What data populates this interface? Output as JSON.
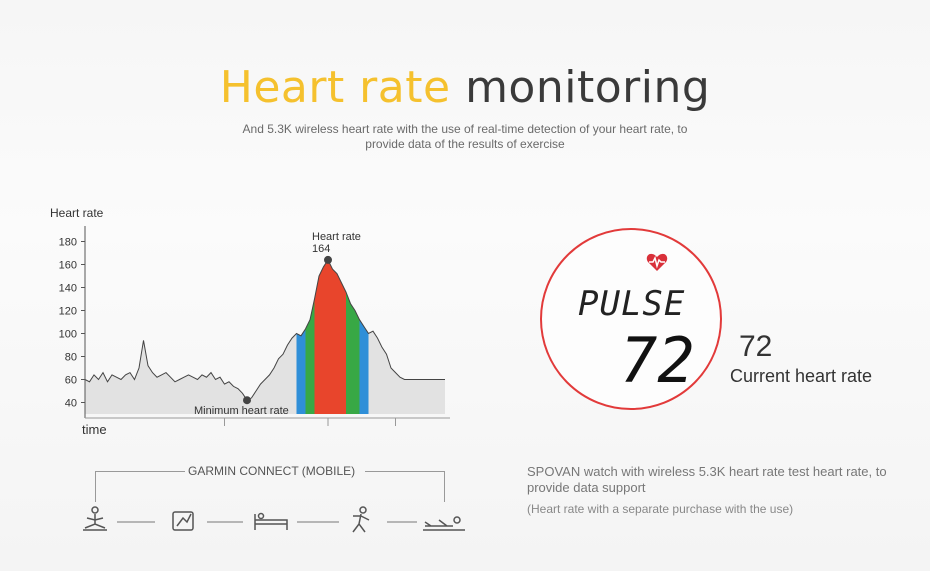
{
  "header": {
    "title_accent": "Heart rate",
    "title_rest": "monitoring",
    "subtitle": "And 5.3K wireless heart rate with the use of real-time detection of your heart rate, to provide data of the results of exercise"
  },
  "chart_data": {
    "type": "area",
    "ylabel": "Heart rate",
    "xlabel": "time",
    "yticks": [
      40,
      60,
      80,
      100,
      120,
      140,
      160,
      180
    ],
    "ylim": [
      30,
      190
    ],
    "x": [
      0,
      1,
      2,
      3,
      4,
      5,
      6,
      7,
      8,
      9,
      10,
      11,
      12,
      13,
      14,
      15,
      16,
      17,
      18,
      19,
      20,
      21,
      22,
      23,
      24,
      25,
      26,
      27,
      28,
      29,
      30,
      31,
      32,
      33,
      34,
      35,
      36,
      37,
      38,
      39,
      40,
      41,
      42,
      43,
      44,
      45,
      46,
      47,
      48,
      49,
      50,
      51,
      52,
      53,
      54,
      55,
      56,
      57,
      58,
      59,
      60,
      61,
      62,
      63,
      64,
      65,
      66,
      67,
      68,
      69,
      70,
      71,
      72,
      73,
      74,
      75,
      76,
      77,
      78,
      79,
      80
    ],
    "values": [
      60,
      58,
      64,
      60,
      66,
      58,
      64,
      62,
      60,
      64,
      66,
      60,
      70,
      94,
      72,
      66,
      62,
      64,
      66,
      62,
      58,
      60,
      62,
      64,
      62,
      60,
      64,
      62,
      66,
      60,
      62,
      56,
      58,
      54,
      52,
      48,
      42,
      44,
      50,
      56,
      60,
      64,
      70,
      78,
      82,
      90,
      96,
      100,
      98,
      104,
      112,
      130,
      150,
      158,
      164,
      156,
      152,
      144,
      136,
      126,
      120,
      112,
      106,
      100,
      102,
      96,
      88,
      82,
      70,
      66,
      62,
      60,
      60,
      60,
      60,
      60,
      60,
      60,
      60,
      60,
      60
    ],
    "annotations": [
      {
        "label": "Heart rate",
        "value_label": "164",
        "x": 54,
        "y": 164
      },
      {
        "label": "Minimum heart rate",
        "x": 36,
        "y": 42
      }
    ],
    "zones": [
      {
        "color": "#2f8fd8",
        "from": 47,
        "to": 63
      },
      {
        "color": "#38a845",
        "from": 49,
        "to": 61
      },
      {
        "color": "#e8452c",
        "from": 51,
        "to": 58
      }
    ],
    "x_dividers": [
      31,
      54,
      69
    ]
  },
  "watch": {
    "display_word": "PULSE",
    "display_value": "72",
    "heart_icon": "heart-pulse-icon",
    "ring_color": "#e23a3a"
  },
  "readout": {
    "value": "72",
    "label": "Current heart rate"
  },
  "garmin": {
    "label": "GARMIN CONNECT (MOBILE)",
    "icons": [
      "meditation-icon",
      "tablet-icon",
      "bed-icon",
      "running-icon",
      "lying-icon"
    ]
  },
  "description": {
    "main": "SPOVAN watch with wireless 5.3K heart rate test heart rate, to provide data support",
    "note": "(Heart rate with a separate purchase with the use)"
  }
}
